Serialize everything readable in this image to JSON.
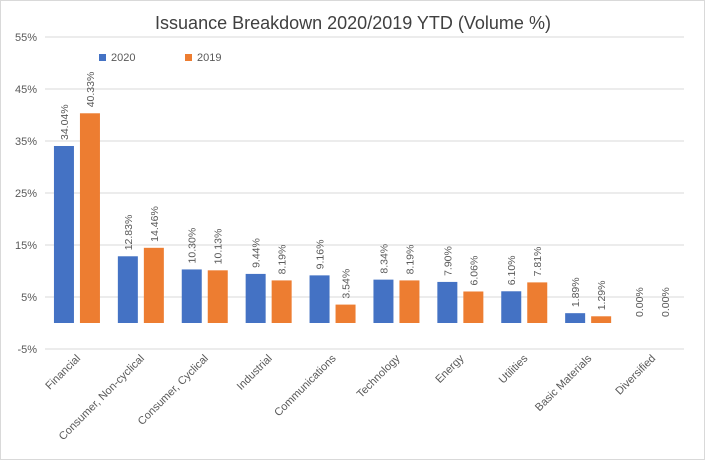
{
  "chart_data": {
    "type": "bar",
    "title": "Issuance Breakdown 2020/2019 YTD (Volume %)",
    "xlabel": "",
    "ylabel": "",
    "ylim": [
      -5,
      55
    ],
    "yticks": [
      "-5%",
      "5%",
      "15%",
      "25%",
      "35%",
      "45%",
      "55%"
    ],
    "ytick_values": [
      -5,
      5,
      15,
      25,
      35,
      45,
      55
    ],
    "grid": true,
    "legend_position": "top-left",
    "categories": [
      "Financial",
      "Consumer, Non-cyclical",
      "Consumer, Cyclical",
      "Industrial",
      "Communications",
      "Technology",
      "Energy",
      "Utilities",
      "Basic Materials",
      "Diversified"
    ],
    "series": [
      {
        "name": "2020",
        "color": "#4472c4",
        "values": [
          34.04,
          12.83,
          10.3,
          9.44,
          9.16,
          8.34,
          7.9,
          6.1,
          1.89,
          0.0
        ],
        "labels": [
          "34.04%",
          "12.83%",
          "10.30%",
          "9.44%",
          "9.16%",
          "8.34%",
          "7.90%",
          "6.10%",
          "1.89%",
          "0.00%"
        ]
      },
      {
        "name": "2019",
        "color": "#ed7d31",
        "values": [
          40.33,
          14.46,
          10.13,
          8.19,
          3.54,
          8.19,
          6.06,
          7.81,
          1.29,
          0.0
        ],
        "labels": [
          "40.33%",
          "14.46%",
          "10.13%",
          "8.19%",
          "3.54%",
          "8.19%",
          "6.06%",
          "7.81%",
          "1.29%",
          "0.00%"
        ]
      }
    ]
  }
}
